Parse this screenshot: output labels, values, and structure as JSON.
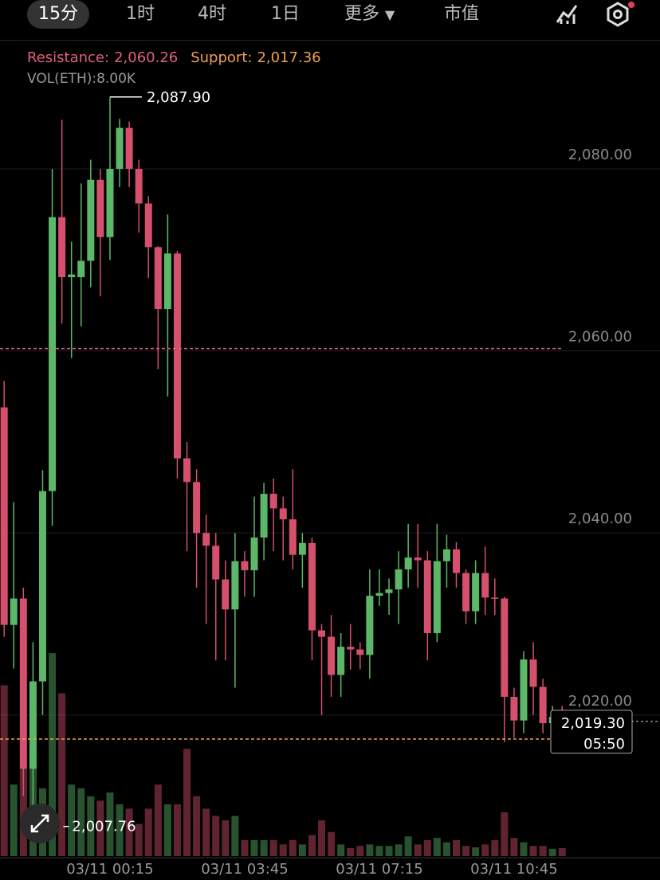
{
  "tabs": [
    "15分",
    "1时",
    "4时",
    "1日",
    "更多",
    "市值"
  ],
  "chart_data": {
    "type": "candlestick",
    "resistance": {
      "label": "Resistance:",
      "value": 2060.26,
      "value_label": "2,060.26",
      "color": "#e0607a"
    },
    "support": {
      "label": "Support:",
      "value": 2017.36,
      "value_label": "2,017.36",
      "color": "#f0a050"
    },
    "vol_label": "VOL(ETH):8.00K",
    "high_marker": {
      "value": 2087.9,
      "label": "2,087.90",
      "index": 11
    },
    "low_marker": {
      "value": 2007.76,
      "label": "2,007.76",
      "index": 3
    },
    "current": {
      "value": 2019.3,
      "label": "2,019.30",
      "countdown": "05:50"
    },
    "ylim": [
      2004.5,
      2093.74
    ],
    "yticks": [
      {
        "value": 2020,
        "label": "2,020.00"
      },
      {
        "value": 2040,
        "label": "2,040.00"
      },
      {
        "value": 2060,
        "label": "2,060.00"
      },
      {
        "value": 2080,
        "label": "2,080.00"
      }
    ],
    "vol_ylim": [
      0,
      30000
    ],
    "up_color": "#5cb868",
    "down_color": "#d4506c",
    "categories": [
      null,
      null,
      null,
      null,
      null,
      null,
      null,
      null,
      null,
      null,
      null,
      "03/11 00:15",
      null,
      null,
      null,
      null,
      null,
      null,
      null,
      null,
      null,
      null,
      null,
      null,
      null,
      "03/11 03:45",
      null,
      null,
      null,
      null,
      null,
      null,
      null,
      null,
      null,
      null,
      null,
      null,
      null,
      "03/11 07:15",
      null,
      null,
      null,
      null,
      null,
      null,
      null,
      null,
      null,
      null,
      null,
      null,
      null,
      "03/11 10:45",
      null,
      null,
      null,
      null,
      null
    ],
    "open": [
      2053.8,
      2029.9,
      2032.8,
      2014.1,
      2023.7,
      2044.6,
      2074.7,
      2068.1,
      2068.1,
      2069.9,
      2078.8,
      2072.5,
      2080.0,
      2084.5,
      2080.0,
      2076.2,
      2071.4,
      2064.6,
      2070.7,
      2048.2,
      2045.6,
      2040.0,
      2038.6,
      2034.9,
      2031.6,
      2036.9,
      2035.9,
      2039.5,
      2044.3,
      2042.7,
      2041.5,
      2037.6,
      2038.9,
      2029.3,
      2028.6,
      2024.4,
      2027.5,
      2027.2,
      2026.6,
      2033.1,
      2033.4,
      2033.8,
      2036.0,
      2037.3,
      2037.0,
      2029.0,
      2036.9,
      2038.2,
      2035.6,
      2031.4,
      2035.6,
      2032.9,
      2032.8,
      2022.0,
      2019.4,
      2026.1,
      2023.1,
      2019.1,
      2019.8
    ],
    "high": [
      2056.7,
      2043.4,
      2034.0,
      2028.0,
      2046.9,
      2080.0,
      2085.4,
      2072.0,
      2078.4,
      2081.0,
      2080.0,
      2087.9,
      2085.5,
      2085.2,
      2081.0,
      2077.0,
      2071.5,
      2075.0,
      2071.0,
      2050.0,
      2047.0,
      2042.0,
      2040.0,
      2037.0,
      2040.0,
      2038.0,
      2044.0,
      2045.5,
      2046.0,
      2044.0,
      2047.0,
      2040.0,
      2039.5,
      2030.0,
      2031.0,
      2029.0,
      2030.0,
      2028.0,
      2036.0,
      2036.0,
      2035.0,
      2038.0,
      2041.0,
      2041.0,
      2038.0,
      2041.0,
      2039.8,
      2039.0,
      2036.0,
      2037.0,
      2038.5,
      2035.0,
      2033.0,
      2023.0,
      2027.0,
      2028.0,
      2024.0,
      2021.0,
      2021.0
    ],
    "low": [
      2028.6,
      2025.1,
      2011.1,
      2007.76,
      2020.0,
      2040.8,
      2063.0,
      2059.2,
      2062.7,
      2067.0,
      2066.0,
      2070.0,
      2078.0,
      2078.0,
      2073.0,
      2068.0,
      2058.0,
      2055.0,
      2046.0,
      2038.0,
      2034.0,
      2030.0,
      2026.0,
      2026.0,
      2023.0,
      2033.0,
      2033.0,
      2037.0,
      2038.0,
      2037.0,
      2036.0,
      2034.0,
      2026.0,
      2020.0,
      2022.0,
      2022.0,
      2025.0,
      2025.0,
      2024.0,
      2032.0,
      2031.0,
      2030.0,
      2034.0,
      2034.0,
      2026.0,
      2028.0,
      2034.0,
      2034.0,
      2030.0,
      2030.0,
      2031.0,
      2031.0,
      2017.0,
      2017.5,
      2018.0,
      2020.0,
      2018.0,
      2018.0,
      2018.5
    ],
    "close": [
      2029.9,
      2032.8,
      2014.1,
      2023.7,
      2044.6,
      2074.7,
      2068.1,
      2068.4,
      2069.9,
      2078.8,
      2072.5,
      2080.0,
      2084.5,
      2080.0,
      2076.2,
      2071.4,
      2064.6,
      2070.7,
      2048.2,
      2045.6,
      2040.0,
      2038.6,
      2034.9,
      2031.6,
      2036.9,
      2035.9,
      2039.5,
      2044.3,
      2042.7,
      2041.5,
      2037.6,
      2038.9,
      2029.3,
      2028.6,
      2024.4,
      2027.5,
      2027.2,
      2026.6,
      2033.1,
      2033.4,
      2033.8,
      2036.0,
      2037.3,
      2037.0,
      2029.0,
      2036.9,
      2038.2,
      2035.6,
      2031.4,
      2035.6,
      2032.9,
      2032.8,
      2022.0,
      2019.4,
      2026.1,
      2023.1,
      2019.1,
      2019.8,
      2019.3
    ],
    "volume": [
      23400,
      9800,
      15300,
      19600,
      9300,
      27800,
      22300,
      9800,
      9300,
      8200,
      7600,
      8700,
      7100,
      6500,
      4400,
      6500,
      9800,
      7100,
      7100,
      14700,
      8200,
      6500,
      5500,
      4900,
      5500,
      2200,
      2200,
      2200,
      2200,
      1600,
      2200,
      1600,
      2900,
      4900,
      3300,
      1600,
      1100,
      1400,
      1600,
      1400,
      1400,
      1600,
      2700,
      1600,
      2200,
      2500,
      1900,
      2200,
      1400,
      1200,
      1600,
      2200,
      6000,
      2500,
      1900,
      1400,
      1400,
      1000,
      1100
    ]
  }
}
